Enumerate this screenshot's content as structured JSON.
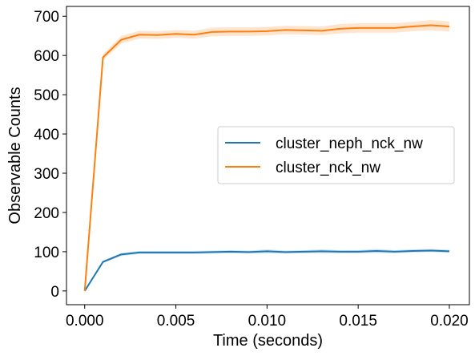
{
  "chart_data": {
    "type": "line",
    "title": "",
    "xlabel": "Time (seconds)",
    "ylabel": "Observable Counts",
    "xlim": [
      -0.001,
      0.0211
    ],
    "ylim": [
      -35,
      725
    ],
    "x_ticks": [
      0.0,
      0.005,
      0.01,
      0.015,
      0.02
    ],
    "x_tick_labels": [
      "0.000",
      "0.005",
      "0.010",
      "0.015",
      "0.020"
    ],
    "y_ticks": [
      0,
      100,
      200,
      300,
      400,
      500,
      600,
      700
    ],
    "y_tick_labels": [
      "0",
      "100",
      "200",
      "300",
      "400",
      "500",
      "600",
      "700"
    ],
    "grid": false,
    "legend_position": "center-right",
    "x": [
      0.0,
      0.001,
      0.002,
      0.003,
      0.004,
      0.005,
      0.006,
      0.007,
      0.008,
      0.009,
      0.01,
      0.011,
      0.012,
      0.013,
      0.014,
      0.015,
      0.016,
      0.017,
      0.018,
      0.019,
      0.02
    ],
    "series": [
      {
        "name": "cluster_neph_nck_nw",
        "color": "#1f77b4",
        "values": [
          0,
          74,
          93,
          98,
          98,
          98,
          98,
          99,
          100,
          99,
          101,
          99,
          100,
          101,
          100,
          100,
          102,
          100,
          102,
          103,
          101
        ],
        "band_halfwidth": [
          0,
          3,
          4,
          4,
          4,
          4,
          4,
          4,
          4,
          4,
          5,
          4,
          4,
          5,
          4,
          4,
          5,
          4,
          4,
          4,
          4
        ]
      },
      {
        "name": "cluster_nck_nw",
        "color": "#ff7f0e",
        "values": [
          0,
          595,
          640,
          653,
          652,
          655,
          653,
          660,
          661,
          661,
          662,
          665,
          664,
          663,
          668,
          670,
          670,
          670,
          674,
          677,
          674
        ],
        "band_halfwidth": [
          0,
          8,
          10,
          10,
          10,
          10,
          10,
          11,
          11,
          11,
          11,
          11,
          11,
          11,
          12,
          12,
          12,
          12,
          12,
          13,
          13
        ]
      }
    ]
  }
}
